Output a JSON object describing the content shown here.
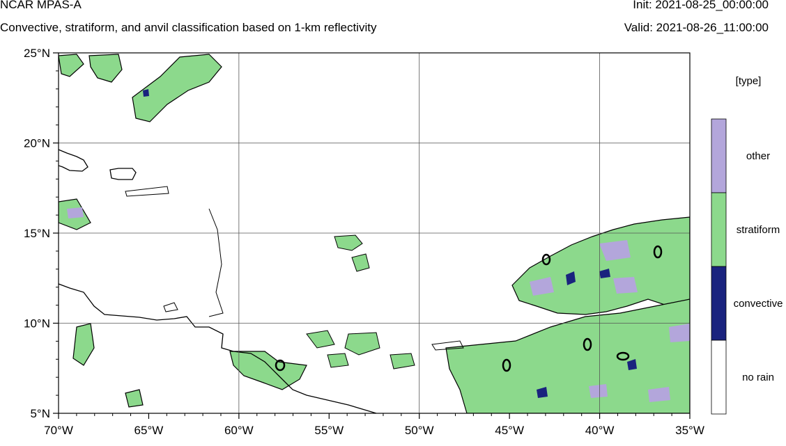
{
  "header": {
    "title": "NCAR MPAS-A",
    "subtitle": "Convective, stratiform, and anvil classification based on 1-km reflectivity",
    "init": "Init: 2021-08-25_00:00:00",
    "valid": "Valid: 2021-08-26_11:00:00"
  },
  "map": {
    "lat_labels": [
      "25°N",
      "20°N",
      "15°N",
      "10°N",
      "5°N"
    ],
    "lon_labels": [
      "70°W",
      "65°W",
      "60°W",
      "55°W",
      "50°W",
      "45°W",
      "40°W",
      "35°W"
    ],
    "extent": {
      "lon_min": -70,
      "lon_max": -35,
      "lat_min": 5,
      "lat_max": 25
    },
    "colors": {
      "stratiform": "#8cd98c",
      "convective": "#1a237e",
      "other": "#b3a6db",
      "no_rain": "#ffffff",
      "contour": "#000000",
      "coastline": "#000000",
      "grid": "#555555"
    }
  },
  "legend": {
    "title": "[type]",
    "entries": [
      {
        "label": "other",
        "color": "#b3a6db"
      },
      {
        "label": "stratiform",
        "color": "#8cd98c"
      },
      {
        "label": "convective",
        "color": "#1a237e"
      },
      {
        "label": "no rain",
        "color": "#ffffff"
      }
    ]
  }
}
